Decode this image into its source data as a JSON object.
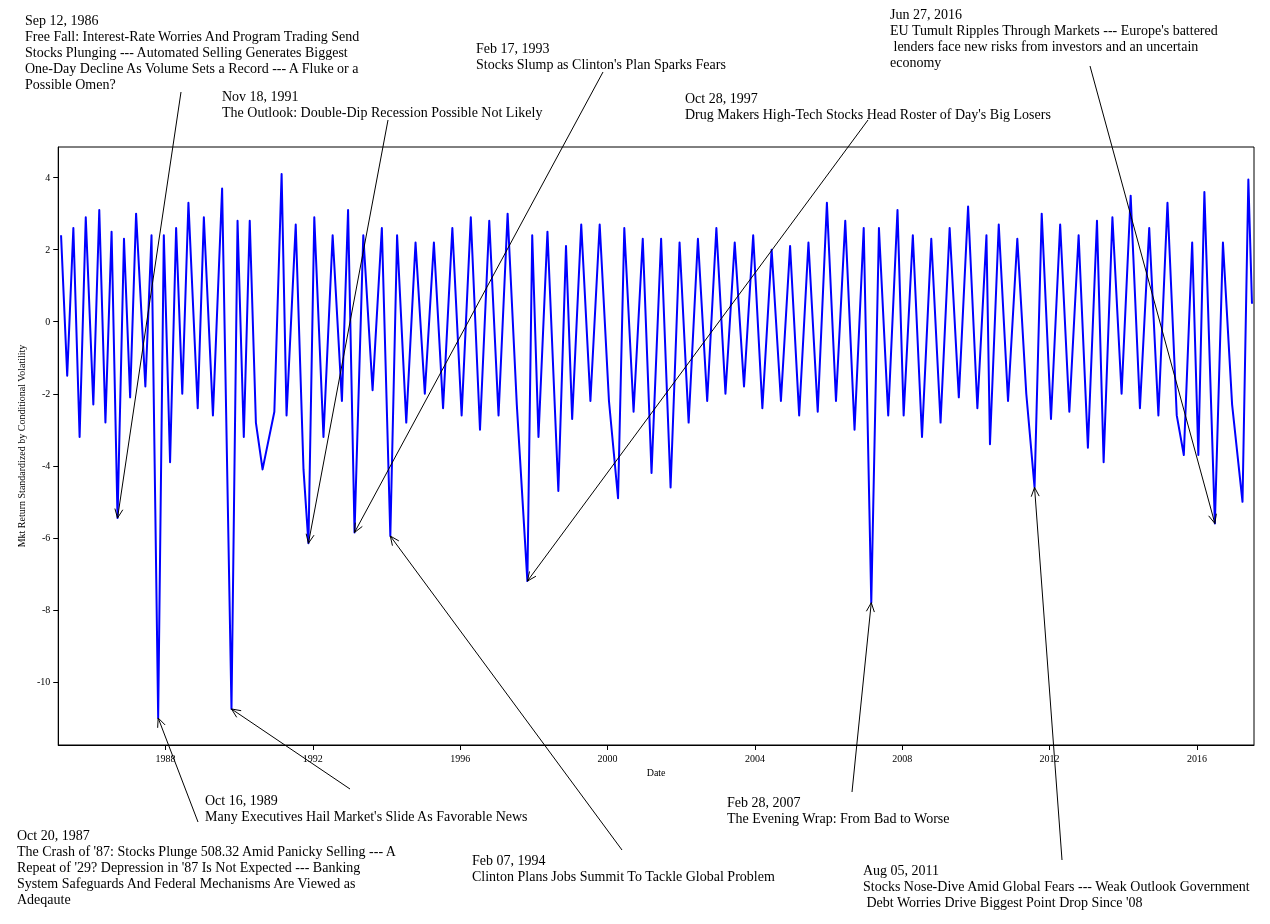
{
  "chart_data": {
    "type": "line",
    "xlabel": "Date",
    "ylabel": "Mkt Return Standardized by Conditional Volatility",
    "xlim": [
      "1985-02-01",
      "2017-07-20"
    ],
    "xticks": [
      "1988",
      "1992",
      "1996",
      "2000",
      "2004",
      "2008",
      "2012",
      "2016"
    ],
    "ylim": [
      -11.75,
      4.85
    ],
    "yticks": [
      -10,
      -8,
      -6,
      -4,
      -2,
      0,
      2,
      4
    ],
    "grid": false,
    "x": [
      "1985-03-01",
      "1985-05-01",
      "1985-07-01",
      "1985-09-01",
      "1985-11-01",
      "1986-01-15",
      "1986-03-15",
      "1986-05-15",
      "1986-07-15",
      "1986-09-12",
      "1986-11-15",
      "1987-01-15",
      "1987-03-15",
      "1987-06-15",
      "1987-08-15",
      "1987-10-20",
      "1987-12-15",
      "1988-02-15",
      "1988-04-15",
      "1988-06-15",
      "1988-08-15",
      "1988-11-15",
      "1989-01-15",
      "1989-04-15",
      "1989-07-15",
      "1989-10-16",
      "1989-12-15",
      "1990-02-15",
      "1990-04-15",
      "1990-06-15",
      "1990-08-20",
      "1990-12-15",
      "1991-02-25",
      "1991-04-15",
      "1991-07-15",
      "1991-09-30",
      "1991-11-18",
      "1992-01-15",
      "1992-04-15",
      "1992-07-15",
      "1992-10-15",
      "1992-12-15",
      "1993-02-17",
      "1993-05-15",
      "1993-08-15",
      "1993-11-15",
      "1994-02-07",
      "1994-04-15",
      "1994-07-15",
      "1994-10-15",
      "1995-01-15",
      "1995-04-15",
      "1995-07-15",
      "1995-10-15",
      "1996-01-15",
      "1996-04-15",
      "1996-07-15",
      "1996-10-15",
      "1997-01-15",
      "1997-04-15",
      "1997-07-15",
      "1997-10-28",
      "1997-12-15",
      "1998-02-15",
      "1998-05-15",
      "1998-08-31",
      "1998-11-15",
      "1999-01-15",
      "1999-04-15",
      "1999-07-15",
      "1999-10-15",
      "2000-01-15",
      "2000-04-14",
      "2000-06-15",
      "2000-09-15",
      "2000-12-15",
      "2001-03-12",
      "2001-06-15",
      "2001-09-17",
      "2001-12-15",
      "2002-03-15",
      "2002-06-15",
      "2002-09-15",
      "2002-12-15",
      "2003-03-15",
      "2003-06-15",
      "2003-09-15",
      "2003-12-15",
      "2004-03-15",
      "2004-06-15",
      "2004-09-15",
      "2004-12-15",
      "2005-03-15",
      "2005-06-15",
      "2005-09-15",
      "2005-12-15",
      "2006-03-15",
      "2006-06-15",
      "2006-09-15",
      "2006-12-15",
      "2007-02-28",
      "2007-05-15",
      "2007-08-15",
      "2007-11-15",
      "2008-01-15",
      "2008-04-15",
      "2008-07-15",
      "2008-10-15",
      "2009-01-15",
      "2009-04-15",
      "2009-07-15",
      "2009-10-15",
      "2010-01-15",
      "2010-04-15",
      "2010-05-20",
      "2010-08-15",
      "2010-11-15",
      "2011-02-15",
      "2011-05-15",
      "2011-08-05",
      "2011-10-15",
      "2012-01-15",
      "2012-04-15",
      "2012-07-15",
      "2012-10-15",
      "2013-01-15",
      "2013-04-15",
      "2013-06-20",
      "2013-09-15",
      "2013-12-15",
      "2014-03-15",
      "2014-06-15",
      "2014-09-15",
      "2014-12-15",
      "2015-03-15",
      "2015-06-15",
      "2015-08-24",
      "2015-11-15",
      "2016-01-15",
      "2016-03-15",
      "2016-06-27",
      "2016-09-15",
      "2016-12-15",
      "2017-03-28",
      "2017-05-25",
      "2017-06-30"
    ],
    "series": [
      {
        "color": "#0000ff",
        "values": [
          2.4,
          -1.5,
          2.6,
          -3.2,
          2.9,
          -2.3,
          3.1,
          -2.8,
          2.5,
          -5.45,
          2.3,
          -2.1,
          3.0,
          -1.8,
          2.4,
          -11.0,
          2.4,
          -3.9,
          2.6,
          -2.0,
          3.3,
          -2.4,
          2.9,
          -2.6,
          3.7,
          -10.75,
          2.8,
          -3.2,
          2.8,
          -2.8,
          -4.1,
          -2.5,
          4.1,
          -2.6,
          2.7,
          -4.1,
          -6.15,
          2.9,
          -3.2,
          2.4,
          -2.2,
          3.1,
          -5.85,
          2.4,
          -1.9,
          2.6,
          -5.95,
          2.4,
          -2.8,
          2.2,
          -2.0,
          2.2,
          -2.4,
          2.6,
          -2.6,
          2.9,
          -3.0,
          2.8,
          -2.6,
          3.0,
          -2.3,
          -7.2,
          2.4,
          -3.2,
          2.5,
          -4.7,
          2.1,
          -2.7,
          2.7,
          -2.2,
          2.7,
          -2.2,
          -4.9,
          2.6,
          -2.5,
          2.3,
          -4.2,
          2.3,
          -4.6,
          2.2,
          -2.8,
          2.3,
          -2.2,
          2.6,
          -2.0,
          2.2,
          -1.8,
          2.4,
          -2.4,
          2.0,
          -2.2,
          2.1,
          -2.6,
          2.2,
          -2.5,
          3.3,
          -2.2,
          2.8,
          -3.0,
          2.6,
          -7.8,
          2.6,
          -2.6,
          3.1,
          -2.6,
          2.4,
          -3.2,
          2.3,
          -2.8,
          2.6,
          -2.1,
          3.2,
          -2.4,
          2.4,
          -3.4,
          2.7,
          -2.2,
          2.3,
          -2.0,
          -4.6,
          3.0,
          -2.7,
          2.7,
          -2.5,
          2.4,
          -3.5,
          2.8,
          -3.9,
          2.9,
          -2.0,
          3.5,
          -2.4,
          2.6,
          -2.6,
          3.3,
          -2.6,
          -3.7,
          2.2,
          -3.7,
          3.6,
          -5.6,
          2.2,
          -2.3,
          -5.0,
          3.95,
          0.5
        ]
      }
    ],
    "annotations": [
      {
        "text": "Sep 12, 1986\nFree Fall: Interest-Rate Worries And Program Trading Send Stocks Plunging --- Automated Selling Generates Biggest One-Day Decline As Volume Sets a Record --- A Fluke or a Possible Omen?",
        "x": "1986-09-12",
        "y": -5.45
      },
      {
        "text": "Nov 18, 1991\nThe Outlook: Double-Dip Recession Possible Not Likely",
        "x": "1991-11-18",
        "y": -6.15
      },
      {
        "text": "Feb 17, 1993\nStocks Slump as Clinton's Plan Sparks Fears",
        "x": "1993-02-17",
        "y": -5.85
      },
      {
        "text": "Oct 28, 1997\nDrug Makers High-Tech Stocks Head Roster of Day's Big Losers",
        "x": "1997-10-28",
        "y": -7.2
      },
      {
        "text": "Jun 27, 2016\nEU Tumult Ripples Through Markets --- Europe's battered lenders face new risks from investors and an uncertain economy",
        "x": "2016-06-27",
        "y": -5.6
      },
      {
        "text": "Oct 20, 1987\nThe Crash of '87: Stocks Plunge 508.32 Amid Panicky Selling --- A Repeat of '29? Depression in '87 Is Not Expected --- Banking System Safeguards And Federal Mechanisms Are Viewed as Adeqaute",
        "x": "1987-10-20",
        "y": -11.0
      },
      {
        "text": "Oct 16, 1989\nMany Executives Hail Market's Slide As Favorable News",
        "x": "1989-10-16",
        "y": -10.75
      },
      {
        "text": "Feb 07, 1994\nClinton Plans Jobs Summit To Tackle Global Problem",
        "x": "1994-02-07",
        "y": -5.95
      },
      {
        "text": "Feb 28, 2007\nThe Evening Wrap: From Bad to Worse",
        "x": "2007-02-28",
        "y": -7.8
      },
      {
        "text": "Aug 05, 2011\nStocks Nose-Dive Amid Global Fears --- Weak Outlook Government Debt Worries Drive Biggest Point Drop Since '08",
        "x": "2011-08-05",
        "y": -4.6
      }
    ]
  }
}
